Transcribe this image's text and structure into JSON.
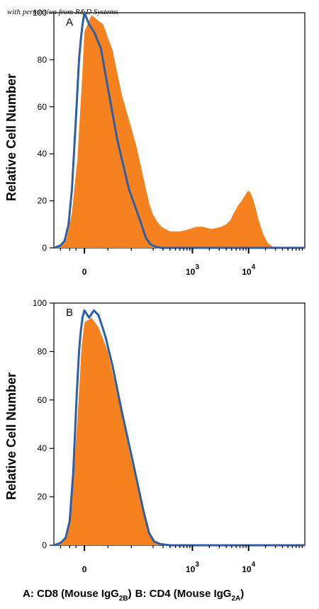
{
  "watermark": "with permission from R&D Systems",
  "caption": {
    "part_a_prefix": "A: CD8 (Mouse IgG",
    "part_a_sub": "2B",
    "part_a_suffix": ")",
    "part_b_prefix": "B: CD4 (Mouse IgG",
    "part_b_sub": "2A",
    "part_b_suffix": ")"
  },
  "colors": {
    "filled_histogram": "#f5821f",
    "outline_histogram": "#2e5ea8",
    "axis": "#000000"
  },
  "chart_data": [
    {
      "type": "area",
      "panel_label": "A",
      "ylabel": "Relative Cell Number",
      "xlabel": "",
      "ylim": [
        0,
        100
      ],
      "yticks": [
        0,
        20,
        40,
        60,
        80,
        100
      ],
      "xscale": "biexponential",
      "xlim": [
        -300,
        100000
      ],
      "xtick_labels": [
        {
          "value": 0,
          "base": "0",
          "exp": ""
        },
        {
          "value": 1000,
          "base": "10",
          "exp": "3"
        },
        {
          "value": 10000,
          "base": "10",
          "exp": "4"
        }
      ],
      "series": [
        {
          "style": "filled",
          "color": "#f5821f",
          "x": [
            -300,
            -200,
            -130,
            -80,
            -40,
            -15,
            0,
            15,
            40,
            60,
            80,
            110,
            140,
            170,
            200,
            240,
            280,
            330,
            400,
            480,
            600,
            750,
            900,
            1000,
            1200,
            1500,
            1800,
            2200,
            2700,
            3300,
            4000,
            4800,
            5500,
            6500,
            7500,
            8500,
            9500,
            10500,
            11500,
            13000,
            15000,
            18000,
            22000,
            27000,
            35000,
            50000,
            100000
          ],
          "y": [
            0,
            1,
            4,
            15,
            38,
            68,
            92,
            99,
            95,
            84,
            65,
            44,
            28,
            19,
            14,
            11,
            9,
            8,
            7,
            7,
            7,
            7.5,
            8,
            8.5,
            9,
            9,
            8.5,
            8,
            8.5,
            9,
            10,
            12,
            15,
            18,
            20,
            22,
            24,
            24,
            22,
            18,
            12,
            6,
            2,
            0.5,
            0,
            0,
            0
          ]
        },
        {
          "style": "outline",
          "color": "#2e5ea8",
          "x": [
            -300,
            -200,
            -150,
            -110,
            -80,
            -50,
            -30,
            -20,
            -10,
            0,
            10,
            20,
            35,
            50,
            70,
            95,
            120,
            150,
            180,
            220,
            280,
            400,
            1000,
            10000,
            100000
          ],
          "y": [
            0,
            1,
            3,
            10,
            25,
            55,
            80,
            88,
            95,
            100,
            95,
            92,
            85,
            68,
            46,
            25,
            11,
            4,
            1.5,
            0.5,
            0,
            0,
            0,
            0,
            0
          ]
        }
      ]
    },
    {
      "type": "area",
      "panel_label": "B",
      "ylabel": "Relative Cell Number",
      "xlabel": "",
      "ylim": [
        0,
        100
      ],
      "yticks": [
        0,
        20,
        40,
        60,
        80,
        100
      ],
      "xscale": "biexponential",
      "xlim": [
        -300,
        100000
      ],
      "xtick_labels": [
        {
          "value": 0,
          "base": "0",
          "exp": ""
        },
        {
          "value": 1000,
          "base": "10",
          "exp": "3"
        },
        {
          "value": 10000,
          "base": "10",
          "exp": "4"
        }
      ],
      "series": [
        {
          "style": "filled",
          "color": "#f5821f",
          "x": [
            -300,
            -200,
            -130,
            -80,
            -40,
            -15,
            0,
            15,
            30,
            50,
            75,
            100,
            130,
            160,
            200,
            260,
            400,
            1000,
            10000,
            100000
          ],
          "y": [
            0,
            1,
            4,
            18,
            52,
            82,
            92,
            94,
            90,
            80,
            58,
            35,
            16,
            6,
            2,
            0.5,
            0,
            0,
            0,
            0
          ]
        },
        {
          "style": "outline",
          "color": "#2e5ea8",
          "x": [
            -300,
            -200,
            -140,
            -100,
            -70,
            -45,
            -30,
            -20,
            -10,
            0,
            10,
            20,
            30,
            45,
            60,
            80,
            105,
            135,
            170,
            210,
            270,
            400,
            1000,
            10000,
            100000
          ],
          "y": [
            0,
            1,
            3,
            10,
            30,
            62,
            80,
            88,
            94,
            97,
            94,
            97,
            95,
            86,
            74,
            55,
            33,
            14,
            5,
            1.5,
            0.5,
            0,
            0,
            0,
            0
          ]
        }
      ]
    }
  ]
}
